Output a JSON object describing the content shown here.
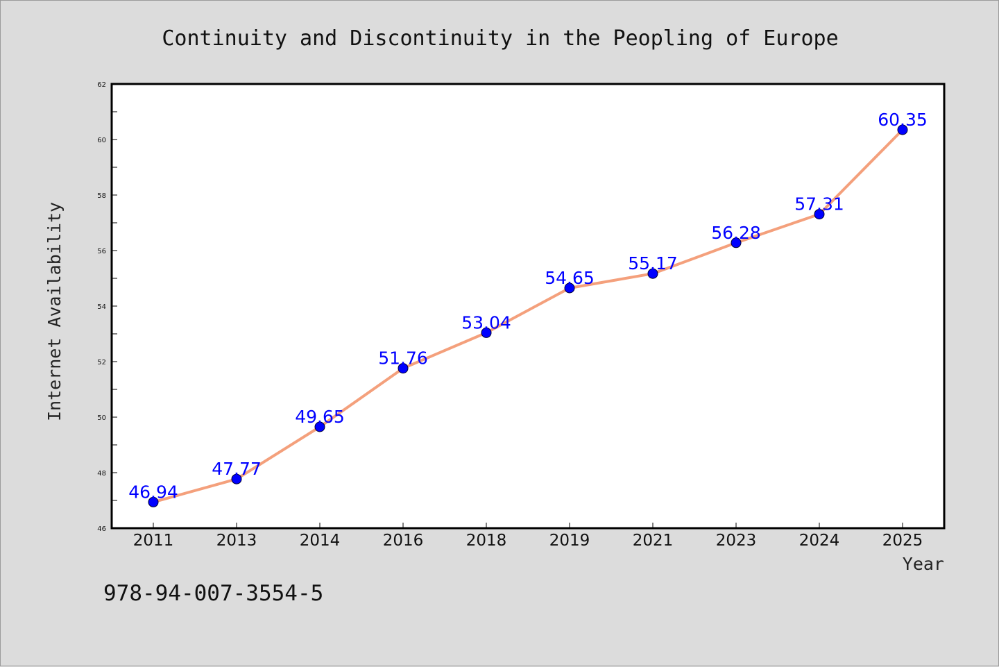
{
  "chart_data": {
    "type": "line",
    "title": "Continuity and Discontinuity in the Peopling of Europe",
    "xlabel": "Year",
    "ylabel": "Internet Availability",
    "categories": [
      "2011",
      "2013",
      "2014",
      "2016",
      "2018",
      "2019",
      "2021",
      "2023",
      "2024",
      "2025"
    ],
    "values": [
      46.94,
      47.77,
      49.65,
      51.76,
      53.04,
      54.65,
      55.17,
      56.28,
      57.31,
      60.35
    ],
    "data_labels": [
      "46.94",
      "47.77",
      "49.65",
      "51.76",
      "53.04",
      "54.65",
      "55.17",
      "56.28",
      "57.31",
      "60.35"
    ],
    "ylim": [
      46,
      62
    ],
    "yticks": [
      "46",
      "48",
      "50",
      "52",
      "54",
      "56",
      "58",
      "60",
      "62"
    ],
    "grid": false,
    "line_color": "#f4a07c",
    "marker_color": "#0000ff",
    "label_color": "#0000ff"
  },
  "footer": {
    "isbn": "978-94-007-3554-5"
  }
}
